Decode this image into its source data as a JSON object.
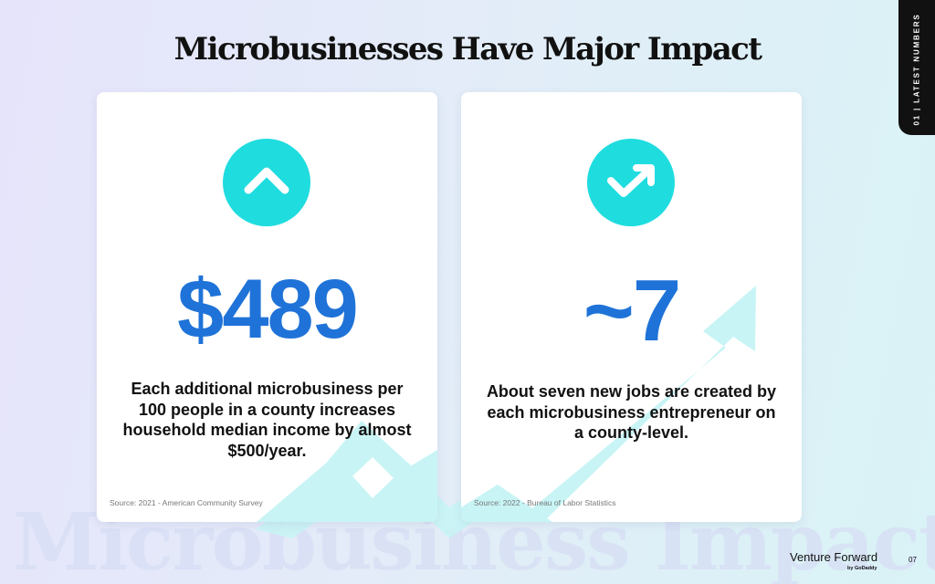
{
  "slide": {
    "title": "Microbusinesses Have Major Impact",
    "watermark": "Microbusiness Impact",
    "side_tab": "01 | LATEST NUMBERS",
    "page_number": "07"
  },
  "brand": {
    "name": "Venture Forward",
    "byline": "by GoDaddy"
  },
  "cards": [
    {
      "icon": "chevron-up-icon",
      "value": "$489",
      "description": "Each additional microbusiness per 100 people in a county increases household median income by almost $500/year.",
      "source": "Source: 2021 - American Community Survey"
    },
    {
      "icon": "trend-up-arrow-icon",
      "value": "~7",
      "description": "About seven new jobs are created by each microbusiness entrepreneur on a county-level.",
      "source": "Source: 2022 - Bureau of Labor Statistics"
    }
  ],
  "colors": {
    "accent_cyan": "#1fdcdf",
    "number_blue": "#1f73d8",
    "arrow_light": "#c6f4f4",
    "dark": "#111111"
  }
}
